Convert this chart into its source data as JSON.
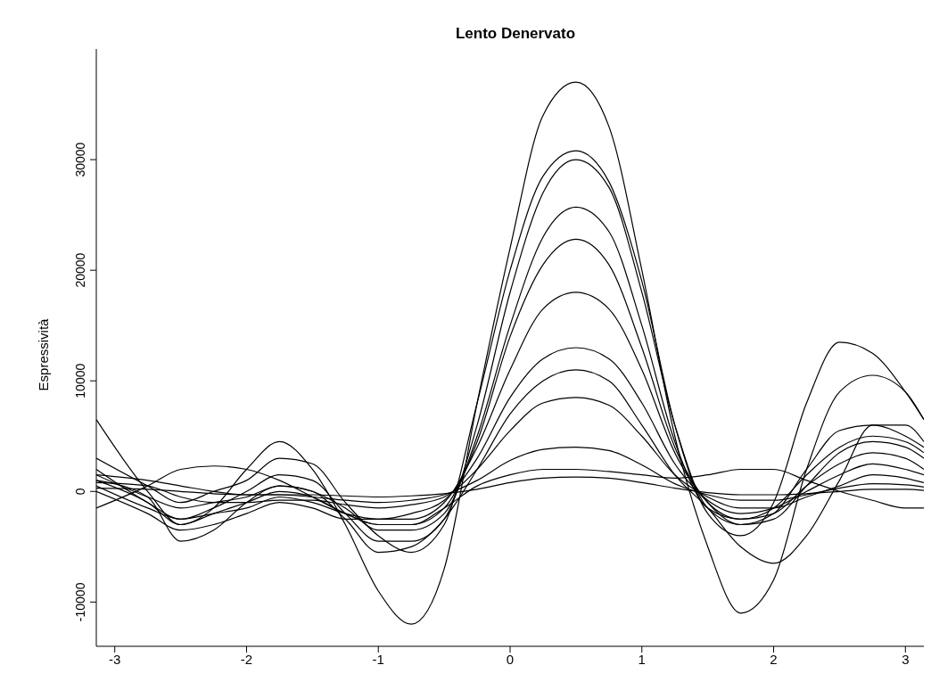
{
  "chart_data": {
    "type": "line",
    "title": "Lento Denervato",
    "ylabel": "Espressività",
    "x": [
      -3.14,
      -2.75,
      -2.5,
      -2.25,
      -2,
      -1.75,
      -1.5,
      -1.25,
      -1,
      -0.75,
      -0.5,
      -0.25,
      0,
      0.25,
      0.5,
      0.75,
      1,
      1.25,
      1.5,
      1.75,
      2,
      2.25,
      2.5,
      2.75,
      3,
      3.14
    ],
    "xlim": [
      -3.14,
      3.14
    ],
    "xticks": [
      -3,
      -2,
      -1,
      0,
      1,
      2,
      3
    ],
    "ylim": [
      -14000,
      40000
    ],
    "yticks": [
      -10000,
      0,
      10000,
      20000,
      30000
    ],
    "grid": false,
    "marker": "none",
    "line_style": "solid",
    "series": [
      {
        "color": "#000000",
        "values": [
          6500,
          0,
          -3000,
          -1500,
          2000,
          4500,
          2000,
          -3000,
          -9000,
          -12000,
          -7000,
          8000,
          22000,
          34000,
          37000,
          33000,
          20000,
          5000,
          -5000,
          -11000,
          -8000,
          2000,
          9000,
          10500,
          9000,
          6500
        ]
      },
      {
        "color": "#000000",
        "values": [
          3000,
          500,
          -1000,
          0,
          1000,
          3000,
          2500,
          -1000,
          -4000,
          -5500,
          -3000,
          8000,
          20000,
          28500,
          30800,
          28000,
          19000,
          6000,
          -2000,
          -4000,
          -1000,
          8000,
          13500,
          12500,
          9000,
          6500
        ]
      },
      {
        "color": "#000000",
        "values": [
          2000,
          -1000,
          -2500,
          -1500,
          0,
          1500,
          1000,
          -2000,
          -4500,
          -4500,
          -2500,
          6000,
          18000,
          27000,
          30000,
          27500,
          18000,
          6000,
          -1500,
          -3000,
          -2000,
          2000,
          5500,
          6000,
          5000,
          4000
        ]
      },
      {
        "color": "#000000",
        "values": [
          1500,
          -500,
          -1500,
          -1000,
          -500,
          500,
          0,
          -1500,
          -3500,
          -3500,
          -2000,
          5000,
          15000,
          23000,
          25700,
          23500,
          15000,
          4500,
          -1500,
          -2500,
          -1500,
          1500,
          4000,
          5000,
          4500,
          3500
        ]
      },
      {
        "color": "#000000",
        "values": [
          1000,
          -1000,
          -3000,
          -2000,
          -1000,
          0,
          -500,
          -2000,
          -3000,
          -3000,
          -1500,
          4500,
          14000,
          20500,
          22800,
          20500,
          13000,
          4000,
          -1000,
          -3000,
          -2500,
          500,
          3500,
          4500,
          4000,
          3000
        ]
      },
      {
        "color": "#000000",
        "values": [
          500,
          -1500,
          -2500,
          -2000,
          -1500,
          -500,
          -1000,
          -2000,
          -2500,
          -2500,
          -1000,
          4000,
          11000,
          16500,
          18000,
          16500,
          11000,
          3500,
          -1000,
          -2500,
          -2000,
          500,
          2500,
          3500,
          3000,
          2000
        ]
      },
      {
        "color": "#000000",
        "values": [
          0,
          -2000,
          -3500,
          -3000,
          -2000,
          -1000,
          -1500,
          -2500,
          -2500,
          -2000,
          -800,
          3000,
          8500,
          12000,
          13000,
          12000,
          8000,
          2500,
          -800,
          -2000,
          -1500,
          0,
          1500,
          2500,
          2000,
          1500
        ]
      },
      {
        "color": "#000000",
        "values": [
          800,
          500,
          -500,
          -1000,
          -1000,
          -800,
          -800,
          -1200,
          -1500,
          -1200,
          -500,
          2000,
          5500,
          8000,
          8500,
          7800,
          5000,
          1500,
          -500,
          -1500,
          -1500,
          -500,
          500,
          1500,
          1200,
          800
        ]
      },
      {
        "color": "#000000",
        "values": [
          1500,
          1000,
          500,
          0,
          -300,
          -300,
          -500,
          -800,
          -1000,
          -800,
          -300,
          1000,
          2800,
          3800,
          4000,
          3700,
          2400,
          700,
          -300,
          -800,
          -800,
          -300,
          300,
          700,
          600,
          400
        ]
      },
      {
        "color": "#000000",
        "values": [
          300,
          200,
          0,
          -200,
          -300,
          -300,
          -300,
          -400,
          -500,
          -400,
          -200,
          200,
          800,
          1200,
          1300,
          1200,
          800,
          300,
          -100,
          -300,
          -300,
          -200,
          0,
          200,
          200,
          100
        ]
      },
      {
        "color": "#000000",
        "values": [
          -1500,
          500,
          2000,
          2300,
          2000,
          1000,
          -500,
          -2000,
          -3000,
          -3000,
          -1500,
          500,
          1500,
          2000,
          2000,
          1800,
          1500,
          1200,
          1500,
          2000,
          2000,
          1000,
          0,
          -800,
          -1500,
          -1500
        ]
      },
      {
        "color": "#000000",
        "values": [
          1000,
          -500,
          -4500,
          -3500,
          -1000,
          500,
          0,
          -2500,
          -5500,
          -5000,
          -2500,
          2000,
          7000,
          10000,
          11000,
          10000,
          6000,
          1500,
          -1500,
          -5000,
          -6500,
          -4000,
          1000,
          6000,
          6000,
          4500
        ]
      }
    ]
  }
}
